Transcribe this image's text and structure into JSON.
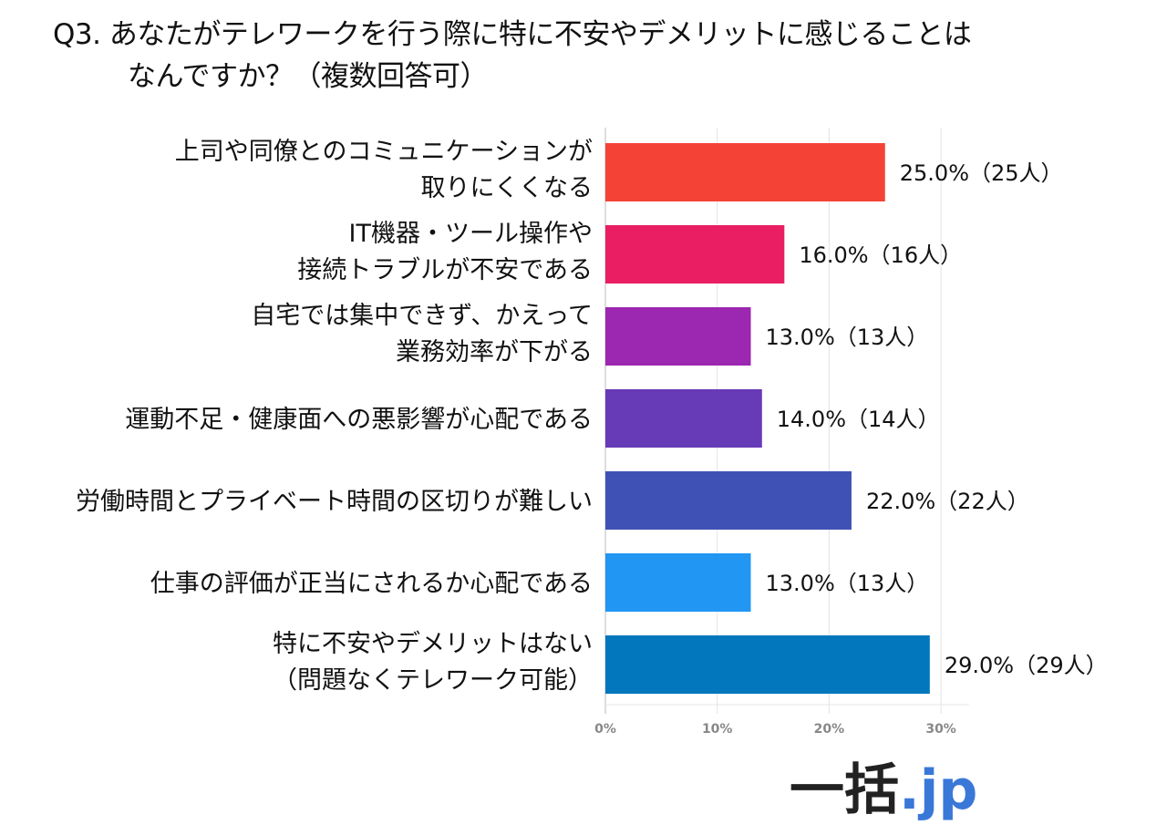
{
  "title": {
    "line1": "Q3. あなたがテレワークを行う際に特に不安やデメリットに感じることは",
    "line2": "なんですか？（複数回答可）"
  },
  "logo": {
    "kanji": "一括",
    "suffix": ".jp"
  },
  "chart_data": {
    "type": "bar",
    "orientation": "horizontal",
    "title": "Q3. あなたがテレワークを行う際に特に不安やデメリットに感じることはなんですか？（複数回答可）",
    "categories": [
      [
        "上司や同僚とのコミュニケーションが",
        "取りにくくなる"
      ],
      [
        "IT機器・ツール操作や",
        "接続トラブルが不安である"
      ],
      [
        "自宅では集中できず、かえって",
        "業務効率が下がる"
      ],
      [
        "運動不足・健康面への悪影響が心配である"
      ],
      [
        "労働時間とプライベート時間の区切りが難しい"
      ],
      [
        "仕事の評価が正当にされるか心配である"
      ],
      [
        "特に不安やデメリットはない",
        "（問題なくテレワーク可能）"
      ]
    ],
    "values": [
      25.0,
      16.0,
      13.0,
      14.0,
      22.0,
      13.0,
      29.0
    ],
    "data_labels": [
      "25.0%（25人）",
      "16.0%（16人）",
      "13.0%（13人）",
      "14.0%（14人）",
      "22.0%（22人）",
      "13.0%（13人）",
      "29.0%（29人）"
    ],
    "colors": [
      "#F44336",
      "#E91E63",
      "#9C27B0",
      "#673AB7",
      "#3F51B5",
      "#2196F3",
      "#0277BD"
    ],
    "xlim": [
      0,
      32
    ],
    "xticks": [
      0,
      10,
      20,
      30
    ],
    "xtick_labels": [
      "0%",
      "10%",
      "20%",
      "30%"
    ],
    "grid": true,
    "xlabel": "",
    "ylabel": ""
  }
}
